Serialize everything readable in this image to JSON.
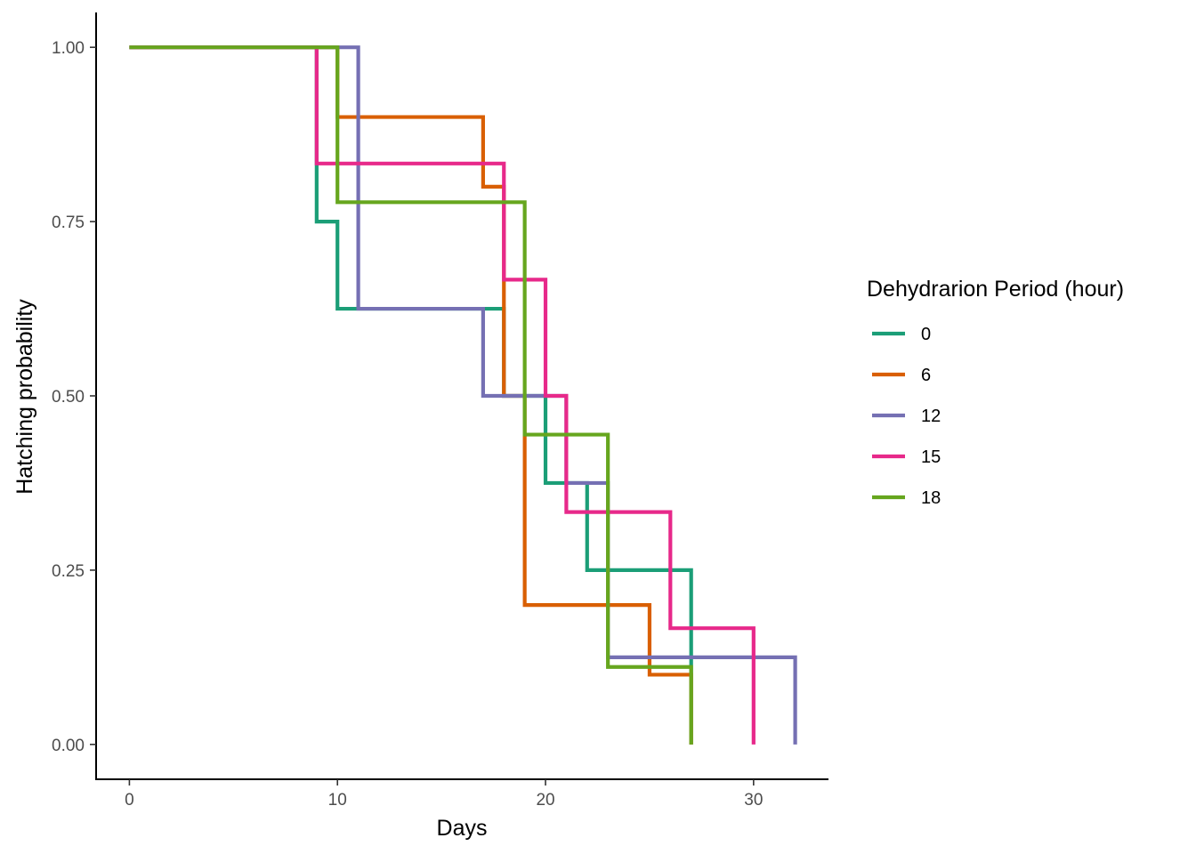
{
  "chart_data": {
    "type": "line",
    "step": true,
    "xlabel": "Days",
    "ylabel": "Hatching probability",
    "xlim": [
      -1.6,
      33.6
    ],
    "ylim": [
      -0.05,
      1.05
    ],
    "xticks": [
      0,
      10,
      20,
      30
    ],
    "yticks": [
      0.0,
      0.25,
      0.5,
      0.75,
      1.0
    ],
    "xtick_labels": [
      "0",
      "10",
      "20",
      "30"
    ],
    "ytick_labels": [
      "0.00",
      "0.25",
      "0.50",
      "0.75",
      "1.00"
    ],
    "grid": false,
    "legend": {
      "title": "Dehydrarion Period (hour)",
      "position": "right"
    },
    "series": [
      {
        "name": "0",
        "color": "#1b9e77",
        "x": [
          0,
          9,
          10,
          18,
          20,
          22,
          27
        ],
        "y": [
          1.0,
          0.75,
          0.625,
          0.5,
          0.375,
          0.25,
          0.0
        ]
      },
      {
        "name": "6",
        "color": "#d95f02",
        "x": [
          0,
          10,
          17,
          18,
          19,
          25,
          27
        ],
        "y": [
          1.0,
          0.9,
          0.8,
          0.5,
          0.2,
          0.1,
          0.0
        ]
      },
      {
        "name": "12",
        "color": "#7570b3",
        "x": [
          0,
          11,
          17,
          21,
          23,
          32
        ],
        "y": [
          1.0,
          0.625,
          0.5,
          0.375,
          0.125,
          0.0
        ]
      },
      {
        "name": "15",
        "color": "#e7298a",
        "x": [
          0,
          9,
          18,
          20,
          21,
          26,
          30
        ],
        "y": [
          1.0,
          0.8333,
          0.6667,
          0.5,
          0.3333,
          0.1667,
          0.0
        ]
      },
      {
        "name": "18",
        "color": "#66a61e",
        "x": [
          0,
          10,
          19,
          23,
          27
        ],
        "y": [
          1.0,
          0.7778,
          0.4444,
          0.1111,
          0.0
        ]
      }
    ]
  }
}
